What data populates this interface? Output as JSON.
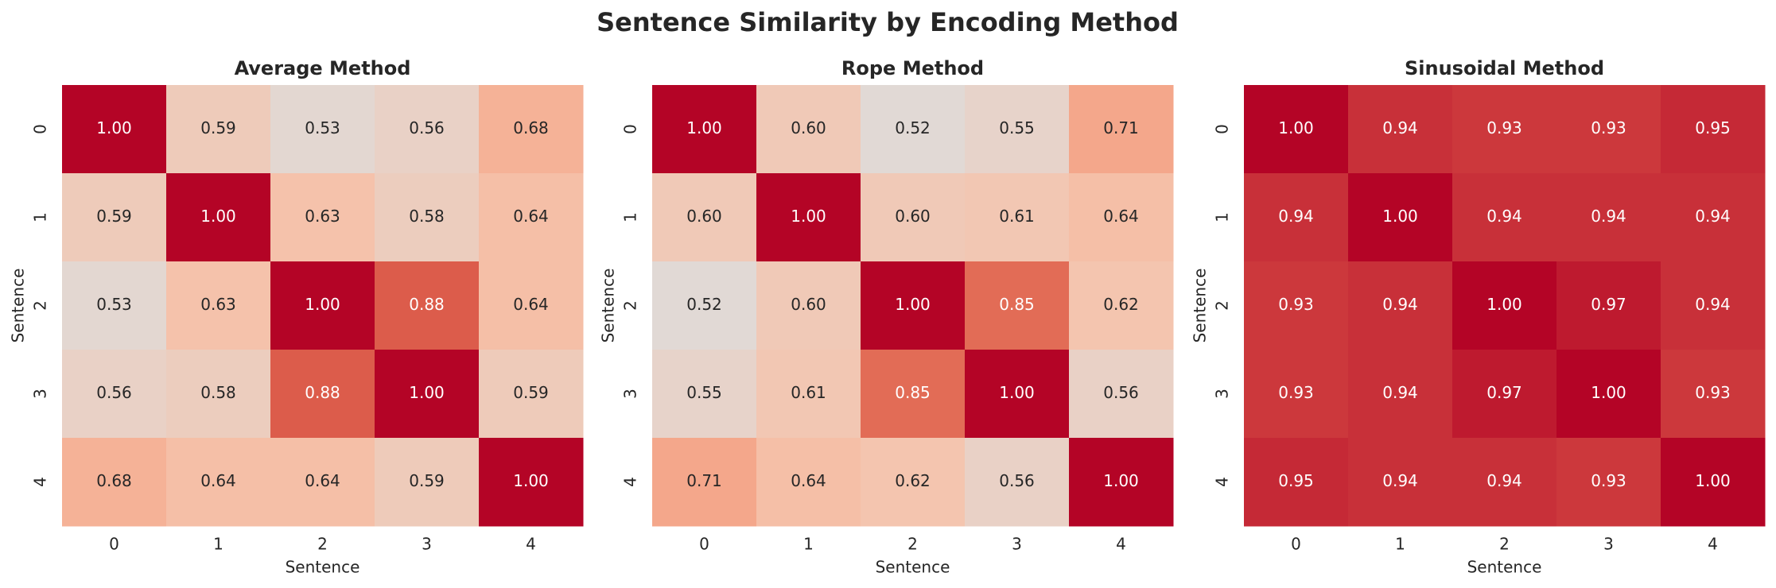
{
  "title": "Sentence Similarity by Encoding Method",
  "chart_data": [
    {
      "type": "heatmap",
      "title": "Average Method",
      "xlabel": "Sentence",
      "ylabel": "Sentence",
      "colormap": "coolwarm",
      "vmin": 0,
      "vmax": 1,
      "x": [
        "0",
        "1",
        "2",
        "3",
        "4"
      ],
      "y": [
        "0",
        "1",
        "2",
        "3",
        "4"
      ],
      "values": [
        [
          1.0,
          0.59,
          0.53,
          0.56,
          0.68
        ],
        [
          0.59,
          1.0,
          0.63,
          0.58,
          0.64
        ],
        [
          0.53,
          0.63,
          1.0,
          0.88,
          0.64
        ],
        [
          0.56,
          0.58,
          0.88,
          1.0,
          0.59
        ],
        [
          0.68,
          0.64,
          0.64,
          0.59,
          1.0
        ]
      ],
      "value_labels": [
        [
          "1.00",
          "0.59",
          "0.53",
          "0.56",
          "0.68"
        ],
        [
          "0.59",
          "1.00",
          "0.63",
          "0.58",
          "0.64"
        ],
        [
          "0.53",
          "0.63",
          "1.00",
          "0.88",
          "0.64"
        ],
        [
          "0.56",
          "0.58",
          "0.88",
          "1.00",
          "0.59"
        ],
        [
          "0.68",
          "0.64",
          "0.64",
          "0.59",
          "1.00"
        ]
      ]
    },
    {
      "type": "heatmap",
      "title": "Rope Method",
      "xlabel": "Sentence",
      "ylabel": "Sentence",
      "colormap": "coolwarm",
      "vmin": 0,
      "vmax": 1,
      "x": [
        "0",
        "1",
        "2",
        "3",
        "4"
      ],
      "y": [
        "0",
        "1",
        "2",
        "3",
        "4"
      ],
      "values": [
        [
          1.0,
          0.6,
          0.52,
          0.55,
          0.71
        ],
        [
          0.6,
          1.0,
          0.6,
          0.61,
          0.64
        ],
        [
          0.52,
          0.6,
          1.0,
          0.85,
          0.62
        ],
        [
          0.55,
          0.61,
          0.85,
          1.0,
          0.56
        ],
        [
          0.71,
          0.64,
          0.62,
          0.56,
          1.0
        ]
      ],
      "value_labels": [
        [
          "1.00",
          "0.60",
          "0.52",
          "0.55",
          "0.71"
        ],
        [
          "0.60",
          "1.00",
          "0.60",
          "0.61",
          "0.64"
        ],
        [
          "0.52",
          "0.60",
          "1.00",
          "0.85",
          "0.62"
        ],
        [
          "0.55",
          "0.61",
          "0.85",
          "1.00",
          "0.56"
        ],
        [
          "0.71",
          "0.64",
          "0.62",
          "0.56",
          "1.00"
        ]
      ]
    },
    {
      "type": "heatmap",
      "title": "Sinusoidal Method",
      "xlabel": "Sentence",
      "ylabel": "Sentence",
      "colormap": "coolwarm",
      "vmin": 0,
      "vmax": 1,
      "x": [
        "0",
        "1",
        "2",
        "3",
        "4"
      ],
      "y": [
        "0",
        "1",
        "2",
        "3",
        "4"
      ],
      "values": [
        [
          1.0,
          0.94,
          0.93,
          0.93,
          0.95
        ],
        [
          0.94,
          1.0,
          0.94,
          0.94,
          0.94
        ],
        [
          0.93,
          0.94,
          1.0,
          0.97,
          0.94
        ],
        [
          0.93,
          0.94,
          0.97,
          1.0,
          0.93
        ],
        [
          0.95,
          0.94,
          0.94,
          0.93,
          1.0
        ]
      ],
      "value_labels": [
        [
          "1.00",
          "0.94",
          "0.93",
          "0.93",
          "0.95"
        ],
        [
          "0.94",
          "1.00",
          "0.94",
          "0.94",
          "0.94"
        ],
        [
          "0.93",
          "0.94",
          "1.00",
          "0.97",
          "0.94"
        ],
        [
          "0.93",
          "0.94",
          "0.97",
          "1.00",
          "0.93"
        ],
        [
          "0.95",
          "0.94",
          "0.94",
          "0.93",
          "1.00"
        ]
      ]
    }
  ]
}
